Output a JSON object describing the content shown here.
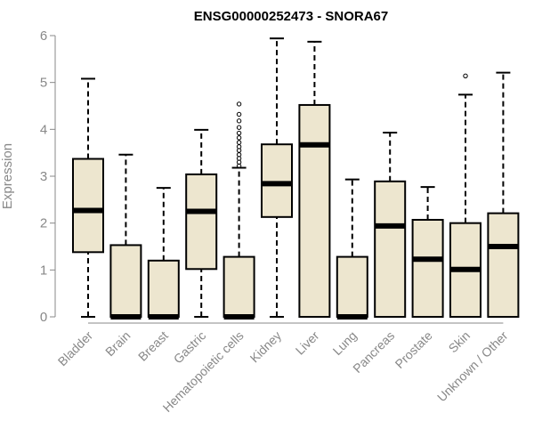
{
  "chart_data": {
    "type": "boxplot",
    "title": "ENSG00000252473 - SNORA67",
    "xlabel": "",
    "ylabel": "Expression",
    "ylim": [
      0,
      6
    ],
    "yticks": [
      "0",
      "1",
      "2",
      "3",
      "4",
      "5",
      "6"
    ],
    "grid": false,
    "colors": {
      "box_fill": "#ede6cf",
      "stroke": "#000000",
      "axis": "#888888"
    },
    "categories": [
      "Bladder",
      "Brain",
      "Breast",
      "Gastric",
      "Hematopoietic cells",
      "Kidney",
      "Liver",
      "Lung",
      "Pancreas",
      "Prostate",
      "Skin",
      "Unknown / Other"
    ],
    "boxes": [
      {
        "q1": 1.38,
        "median": 2.27,
        "q3": 3.37,
        "whisker_low": 0,
        "whisker_high": 5.08,
        "outliers": []
      },
      {
        "q1": 0,
        "median": 0,
        "q3": 1.53,
        "whisker_low": 0,
        "whisker_high": 3.46,
        "outliers": []
      },
      {
        "q1": 0,
        "median": 0,
        "q3": 1.2,
        "whisker_low": 0,
        "whisker_high": 2.75,
        "outliers": []
      },
      {
        "q1": 1.02,
        "median": 2.25,
        "q3": 3.04,
        "whisker_low": 0,
        "whisker_high": 3.99,
        "outliers": []
      },
      {
        "q1": 0,
        "median": 0,
        "q3": 1.28,
        "whisker_low": 0,
        "whisker_high": 3.18,
        "outliers": [
          3.22,
          3.3,
          3.38,
          3.46,
          3.55,
          3.63,
          3.72,
          3.82,
          3.92,
          4.04,
          4.18,
          4.32,
          4.54
        ]
      },
      {
        "q1": 2.13,
        "median": 2.84,
        "q3": 3.68,
        "whisker_low": 0,
        "whisker_high": 5.94,
        "outliers": []
      },
      {
        "q1": 0,
        "median": 3.67,
        "q3": 4.52,
        "whisker_low": 0,
        "whisker_high": 5.87,
        "outliers": []
      },
      {
        "q1": 0,
        "median": 0,
        "q3": 1.28,
        "whisker_low": 0,
        "whisker_high": 2.93,
        "outliers": []
      },
      {
        "q1": 0,
        "median": 1.94,
        "q3": 2.89,
        "whisker_low": 0,
        "whisker_high": 3.93,
        "outliers": []
      },
      {
        "q1": 0,
        "median": 1.23,
        "q3": 2.07,
        "whisker_low": 0,
        "whisker_high": 2.77,
        "outliers": []
      },
      {
        "q1": 0,
        "median": 1.01,
        "q3": 2.0,
        "whisker_low": 0,
        "whisker_high": 4.74,
        "outliers": [
          5.14
        ]
      },
      {
        "q1": 0,
        "median": 1.5,
        "q3": 2.21,
        "whisker_low": 0,
        "whisker_high": 5.21,
        "outliers": []
      }
    ]
  }
}
